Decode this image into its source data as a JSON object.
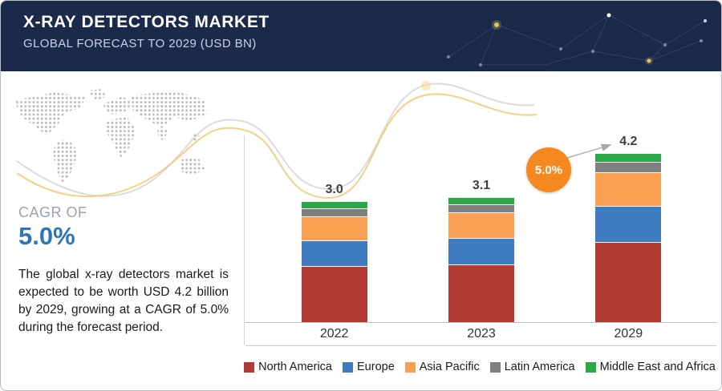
{
  "header": {
    "title": "X-RAY DETECTORS MARKET",
    "subtitle": "GLOBAL FORECAST TO 2029 (USD BN)"
  },
  "sidebar": {
    "cagr_label": "CAGR OF",
    "cagr_value": "5.0%",
    "description": "The global x-ray detectors market is expected to be worth USD 4.2 billion by 2029, growing at a CAGR of 5.0% during the forecast period."
  },
  "chart_data": {
    "type": "bar",
    "stacked": true,
    "title": "X-Ray Detectors Market, Global Forecast (USD BN)",
    "categories": [
      "2022",
      "2023",
      "2029"
    ],
    "totals": [
      3.0,
      3.1,
      4.2
    ],
    "total_labels": [
      "3.0",
      "3.1",
      "4.2"
    ],
    "growth_badge": "5.0%",
    "ylim": [
      0,
      4.5
    ],
    "legend_position": "bottom",
    "series": [
      {
        "name": "North America",
        "color": "#b23b33",
        "values": [
          1.4,
          1.45,
          2.0
        ]
      },
      {
        "name": "Europe",
        "color": "#3f7cbf",
        "values": [
          0.65,
          0.65,
          0.9
        ]
      },
      {
        "name": "Asia Pacific",
        "color": "#f9a052",
        "values": [
          0.6,
          0.65,
          0.85
        ]
      },
      {
        "name": "Latin America",
        "color": "#808080",
        "values": [
          0.2,
          0.2,
          0.25
        ]
      },
      {
        "name": "Middle East and Africa",
        "color": "#2aa946",
        "values": [
          0.15,
          0.15,
          0.2
        ]
      }
    ]
  }
}
